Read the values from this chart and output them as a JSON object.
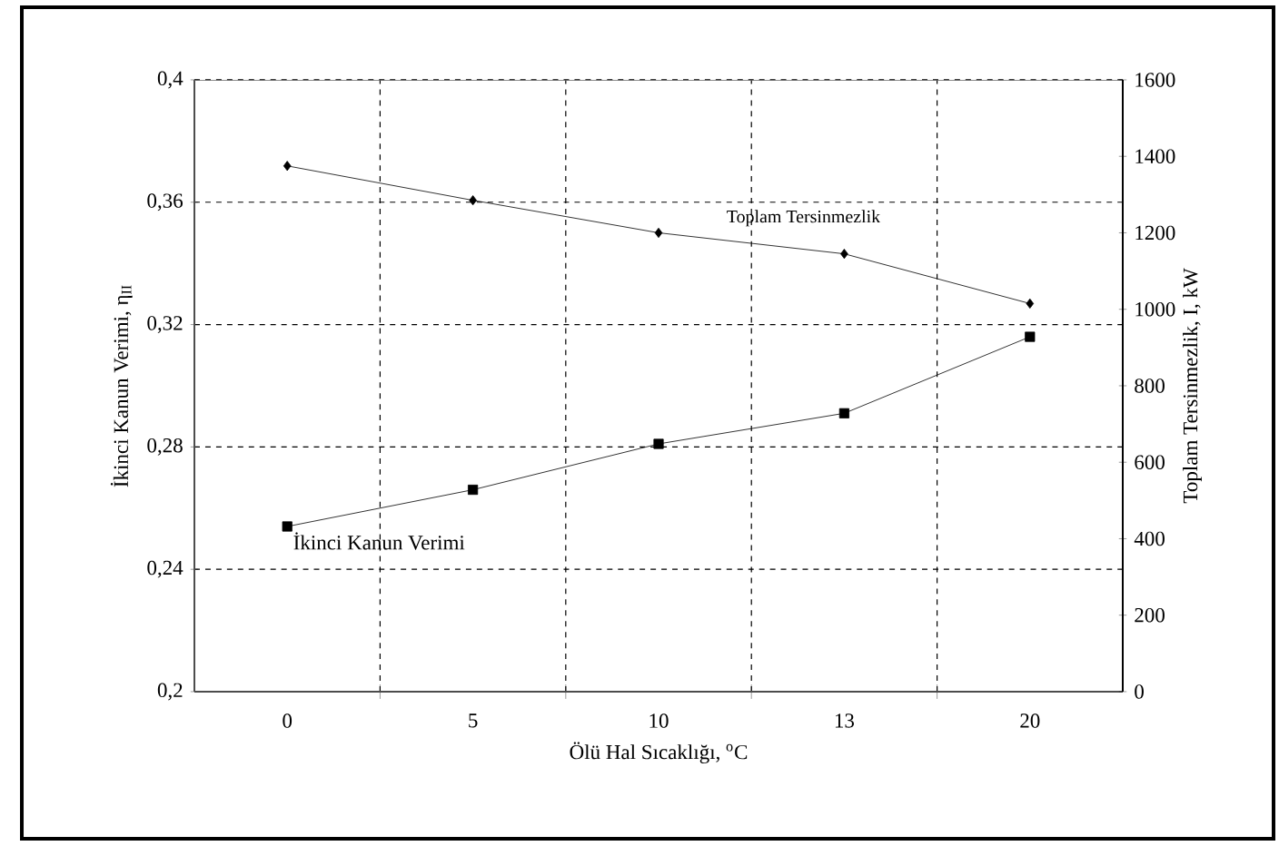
{
  "chart_data": {
    "type": "line",
    "xlabel": "Ölü Hal Sıcaklığı, $^{o}$C",
    "ylabel": "İkinci Kanun Verimi, η$_{II}$",
    "y2label": "Toplam Tersinmezlik, I, kW",
    "categories": [
      "0",
      "5",
      "10",
      "13",
      "20"
    ],
    "ylim": [
      0.2,
      0.4
    ],
    "yticks": [
      {
        "value": 0.2,
        "label": "0,2"
      },
      {
        "value": 0.24,
        "label": "0,24"
      },
      {
        "value": 0.28,
        "label": "0,28"
      },
      {
        "value": 0.32,
        "label": "0,32"
      },
      {
        "value": 0.36,
        "label": "0,36"
      },
      {
        "value": 0.4,
        "label": "0,4"
      }
    ],
    "y2lim": [
      0,
      1600
    ],
    "y2ticks": [
      0,
      200,
      400,
      600,
      800,
      1000,
      1200,
      1400,
      1600
    ],
    "grid": true,
    "line_style": "solid",
    "series": [
      {
        "name": "Toplam Tersinmezlik",
        "color": "#000000",
        "marker": "diamond",
        "axis": "y2",
        "values": [
          1375,
          1285,
          1200,
          1145,
          1015
        ]
      },
      {
        "name": "İkinci Kanun Verimi",
        "color": "#000000",
        "marker": "square",
        "values": [
          0.254,
          0.266,
          0.281,
          0.291,
          0.316
        ]
      }
    ]
  }
}
